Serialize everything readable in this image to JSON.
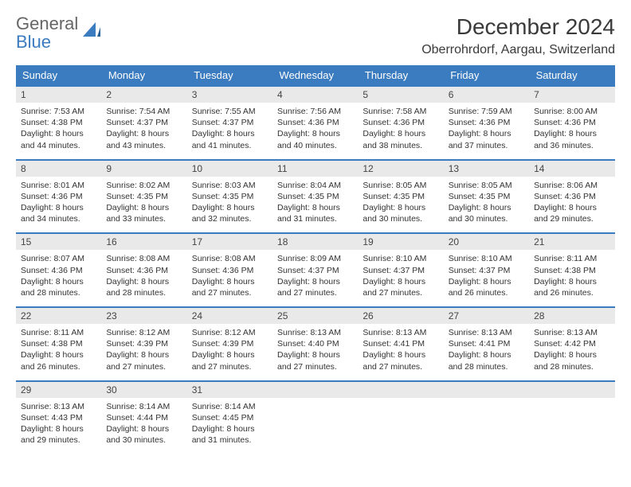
{
  "logo": {
    "line1": "General",
    "line2": "Blue"
  },
  "title": "December 2024",
  "location": "Oberrohrdorf, Aargau, Switzerland",
  "colors": {
    "header_bg": "#3b7bbf",
    "header_text": "#ffffff",
    "day_bg": "#e9e9e9",
    "border": "#3b7bbf",
    "text": "#333333",
    "logo_blue": "#3b7bbf"
  },
  "weekdays": [
    "Sunday",
    "Monday",
    "Tuesday",
    "Wednesday",
    "Thursday",
    "Friday",
    "Saturday"
  ],
  "days": [
    {
      "n": "1",
      "sunrise": "7:53 AM",
      "sunset": "4:38 PM",
      "daylight": "8 hours and 44 minutes."
    },
    {
      "n": "2",
      "sunrise": "7:54 AM",
      "sunset": "4:37 PM",
      "daylight": "8 hours and 43 minutes."
    },
    {
      "n": "3",
      "sunrise": "7:55 AM",
      "sunset": "4:37 PM",
      "daylight": "8 hours and 41 minutes."
    },
    {
      "n": "4",
      "sunrise": "7:56 AM",
      "sunset": "4:36 PM",
      "daylight": "8 hours and 40 minutes."
    },
    {
      "n": "5",
      "sunrise": "7:58 AM",
      "sunset": "4:36 PM",
      "daylight": "8 hours and 38 minutes."
    },
    {
      "n": "6",
      "sunrise": "7:59 AM",
      "sunset": "4:36 PM",
      "daylight": "8 hours and 37 minutes."
    },
    {
      "n": "7",
      "sunrise": "8:00 AM",
      "sunset": "4:36 PM",
      "daylight": "8 hours and 36 minutes."
    },
    {
      "n": "8",
      "sunrise": "8:01 AM",
      "sunset": "4:36 PM",
      "daylight": "8 hours and 34 minutes."
    },
    {
      "n": "9",
      "sunrise": "8:02 AM",
      "sunset": "4:35 PM",
      "daylight": "8 hours and 33 minutes."
    },
    {
      "n": "10",
      "sunrise": "8:03 AM",
      "sunset": "4:35 PM",
      "daylight": "8 hours and 32 minutes."
    },
    {
      "n": "11",
      "sunrise": "8:04 AM",
      "sunset": "4:35 PM",
      "daylight": "8 hours and 31 minutes."
    },
    {
      "n": "12",
      "sunrise": "8:05 AM",
      "sunset": "4:35 PM",
      "daylight": "8 hours and 30 minutes."
    },
    {
      "n": "13",
      "sunrise": "8:05 AM",
      "sunset": "4:35 PM",
      "daylight": "8 hours and 30 minutes."
    },
    {
      "n": "14",
      "sunrise": "8:06 AM",
      "sunset": "4:36 PM",
      "daylight": "8 hours and 29 minutes."
    },
    {
      "n": "15",
      "sunrise": "8:07 AM",
      "sunset": "4:36 PM",
      "daylight": "8 hours and 28 minutes."
    },
    {
      "n": "16",
      "sunrise": "8:08 AM",
      "sunset": "4:36 PM",
      "daylight": "8 hours and 28 minutes."
    },
    {
      "n": "17",
      "sunrise": "8:08 AM",
      "sunset": "4:36 PM",
      "daylight": "8 hours and 27 minutes."
    },
    {
      "n": "18",
      "sunrise": "8:09 AM",
      "sunset": "4:37 PM",
      "daylight": "8 hours and 27 minutes."
    },
    {
      "n": "19",
      "sunrise": "8:10 AM",
      "sunset": "4:37 PM",
      "daylight": "8 hours and 27 minutes."
    },
    {
      "n": "20",
      "sunrise": "8:10 AM",
      "sunset": "4:37 PM",
      "daylight": "8 hours and 26 minutes."
    },
    {
      "n": "21",
      "sunrise": "8:11 AM",
      "sunset": "4:38 PM",
      "daylight": "8 hours and 26 minutes."
    },
    {
      "n": "22",
      "sunrise": "8:11 AM",
      "sunset": "4:38 PM",
      "daylight": "8 hours and 26 minutes."
    },
    {
      "n": "23",
      "sunrise": "8:12 AM",
      "sunset": "4:39 PM",
      "daylight": "8 hours and 27 minutes."
    },
    {
      "n": "24",
      "sunrise": "8:12 AM",
      "sunset": "4:39 PM",
      "daylight": "8 hours and 27 minutes."
    },
    {
      "n": "25",
      "sunrise": "8:13 AM",
      "sunset": "4:40 PM",
      "daylight": "8 hours and 27 minutes."
    },
    {
      "n": "26",
      "sunrise": "8:13 AM",
      "sunset": "4:41 PM",
      "daylight": "8 hours and 27 minutes."
    },
    {
      "n": "27",
      "sunrise": "8:13 AM",
      "sunset": "4:41 PM",
      "daylight": "8 hours and 28 minutes."
    },
    {
      "n": "28",
      "sunrise": "8:13 AM",
      "sunset": "4:42 PM",
      "daylight": "8 hours and 28 minutes."
    },
    {
      "n": "29",
      "sunrise": "8:13 AM",
      "sunset": "4:43 PM",
      "daylight": "8 hours and 29 minutes."
    },
    {
      "n": "30",
      "sunrise": "8:14 AM",
      "sunset": "4:44 PM",
      "daylight": "8 hours and 30 minutes."
    },
    {
      "n": "31",
      "sunrise": "8:14 AM",
      "sunset": "4:45 PM",
      "daylight": "8 hours and 31 minutes."
    }
  ],
  "labels": {
    "sunrise": "Sunrise: ",
    "sunset": "Sunset: ",
    "daylight": "Daylight: "
  },
  "layout": {
    "start_offset": 0,
    "total_cells": 35
  }
}
